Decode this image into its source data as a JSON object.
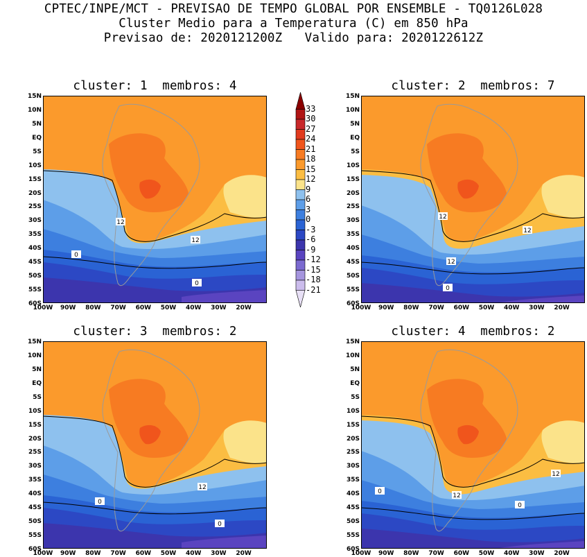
{
  "header": {
    "line1": "CPTEC/INPE/MCT - PREVISAO DE TEMPO GLOBAL POR ENSEMBLE - TQ0126L028",
    "line2": "Cluster Medio para a Temperatura (C) em 850 hPa",
    "line3": "Previsao de: 2020121200Z   Valido para: 2020122612Z"
  },
  "panels": [
    {
      "title": "cluster: 1  membros: 4",
      "contour_labels": [
        "12",
        "12",
        "0",
        "0"
      ]
    },
    {
      "title": "cluster: 2  membros: 7",
      "contour_labels": [
        "12",
        "12",
        "12",
        "0"
      ]
    },
    {
      "title": "cluster: 3  membros: 2",
      "contour_labels": [
        "12",
        "0",
        "0"
      ]
    },
    {
      "title": "cluster: 4  membros: 2",
      "contour_labels": [
        "12",
        "12",
        "0",
        "0"
      ]
    }
  ],
  "axes": {
    "lat_ticks": [
      "15N",
      "10N",
      "5N",
      "EQ",
      "5S",
      "10S",
      "15S",
      "20S",
      "25S",
      "30S",
      "35S",
      "40S",
      "45S",
      "50S",
      "55S",
      "60S"
    ],
    "lon_ticks": [
      "100W",
      "90W",
      "80W",
      "70W",
      "60W",
      "50W",
      "40W",
      "30W",
      "20W"
    ]
  },
  "colorbar": {
    "labels": [
      "33",
      "30",
      "27",
      "24",
      "21",
      "18",
      "15",
      "12",
      "9",
      "6",
      "3",
      "0",
      "-3",
      "-6",
      "-9",
      "-12",
      "-15",
      "-18",
      "-21"
    ],
    "colors": [
      "#8b0000",
      "#b01515",
      "#c8282a",
      "#e13a1e",
      "#f0551c",
      "#f77b22",
      "#fb9a2c",
      "#fbbd42",
      "#fbe38a",
      "#8ec1ee",
      "#5d9ee8",
      "#3d7fdf",
      "#2a63d4",
      "#2c48c4",
      "#3c35ad",
      "#5a44c0",
      "#7b6ad0",
      "#a595de",
      "#cbbcec",
      "#e8e0f6"
    ]
  }
}
